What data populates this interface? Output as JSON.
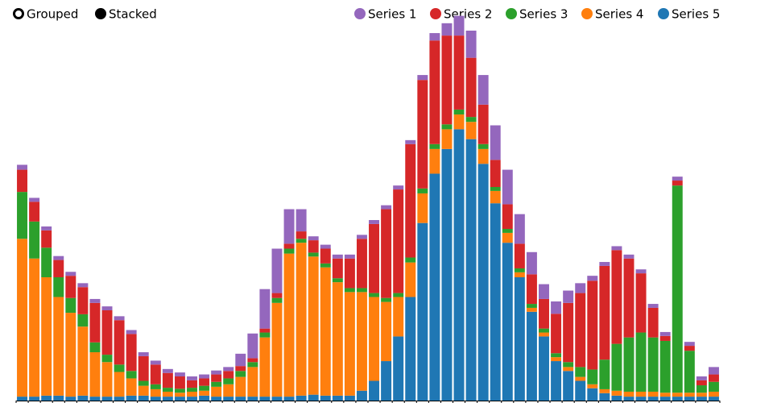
{
  "controls": {
    "modes": [
      {
        "label": "Grouped",
        "selected": false
      },
      {
        "label": "Stacked",
        "selected": true
      }
    ]
  },
  "chart_data": {
    "type": "bar",
    "stacked": true,
    "title": "",
    "xlabel": "",
    "ylabel": "",
    "ylim": [
      0,
      7.5
    ],
    "n_categories": 58,
    "legend_position": "top-right",
    "series": [
      {
        "name": "Series 1",
        "color": "#9467bd",
        "values": [
          0.1,
          0.08,
          0.08,
          0.08,
          0.08,
          0.08,
          0.08,
          0.08,
          0.08,
          0.08,
          0.08,
          0.08,
          0.08,
          0.08,
          0.08,
          0.08,
          0.08,
          0.08,
          0.25,
          0.5,
          0.8,
          0.9,
          0.7,
          0.45,
          0.08,
          0.08,
          0.08,
          0.08,
          0.08,
          0.08,
          0.08,
          0.08,
          0.08,
          0.1,
          0.15,
          0.25,
          0.4,
          0.55,
          0.6,
          0.7,
          0.7,
          0.6,
          0.45,
          0.3,
          0.25,
          0.25,
          0.2,
          0.1,
          0.08,
          0.08,
          0.08,
          0.08,
          0.08,
          0.08,
          0.08,
          0.08,
          0.08,
          0.15
        ]
      },
      {
        "name": "Series 2",
        "color": "#d62728",
        "values": [
          0.45,
          0.4,
          0.35,
          0.35,
          0.45,
          0.55,
          0.8,
          0.9,
          0.9,
          0.75,
          0.5,
          0.4,
          0.3,
          0.25,
          0.15,
          0.15,
          0.15,
          0.15,
          0.1,
          0.08,
          0.08,
          0.1,
          0.1,
          0.15,
          0.25,
          0.3,
          0.4,
          0.6,
          1.0,
          1.4,
          1.8,
          2.1,
          2.3,
          2.2,
          2.1,
          1.8,
          1.5,
          1.2,
          0.8,
          0.55,
          0.5,
          0.5,
          0.6,
          0.6,
          0.8,
          1.2,
          1.5,
          1.8,
          1.9,
          1.9,
          1.6,
          1.2,
          0.6,
          0.1,
          0.1,
          0.1,
          0.1,
          0.15
        ]
      },
      {
        "name": "Series 3",
        "color": "#2ca02c",
        "values": [
          0.95,
          0.75,
          0.6,
          0.4,
          0.3,
          0.25,
          0.2,
          0.15,
          0.15,
          0.15,
          0.1,
          0.1,
          0.08,
          0.08,
          0.08,
          0.1,
          0.1,
          0.12,
          0.12,
          0.1,
          0.1,
          0.1,
          0.1,
          0.08,
          0.08,
          0.08,
          0.08,
          0.08,
          0.08,
          0.08,
          0.08,
          0.08,
          0.1,
          0.1,
          0.1,
          0.1,
          0.1,
          0.1,
          0.1,
          0.08,
          0.08,
          0.08,
          0.08,
          0.08,
          0.08,
          0.1,
          0.2,
          0.3,
          0.6,
          0.95,
          1.1,
          1.2,
          1.1,
          1.05,
          4.2,
          0.85,
          0.15,
          0.2
        ]
      },
      {
        "name": "Series 4",
        "color": "#ff7f0e",
        "values": [
          3.2,
          2.8,
          2.4,
          2.0,
          1.7,
          1.4,
          0.9,
          0.7,
          0.5,
          0.35,
          0.2,
          0.15,
          0.1,
          0.08,
          0.1,
          0.1,
          0.2,
          0.25,
          0.4,
          0.6,
          1.2,
          1.9,
          2.9,
          3.1,
          2.8,
          2.6,
          2.3,
          2.1,
          2.0,
          1.7,
          1.2,
          0.8,
          0.7,
          0.6,
          0.5,
          0.4,
          0.3,
          0.35,
          0.3,
          0.25,
          0.2,
          0.1,
          0.08,
          0.08,
          0.08,
          0.08,
          0.08,
          0.08,
          0.08,
          0.1,
          0.1,
          0.1,
          0.1,
          0.08,
          0.08,
          0.08,
          0.08,
          0.1
        ]
      },
      {
        "name": "Series 5",
        "color": "#1f77b4",
        "values": [
          0.08,
          0.08,
          0.1,
          0.1,
          0.08,
          0.1,
          0.08,
          0.08,
          0.08,
          0.1,
          0.1,
          0.08,
          0.08,
          0.08,
          0.08,
          0.1,
          0.08,
          0.08,
          0.08,
          0.08,
          0.08,
          0.08,
          0.08,
          0.1,
          0.12,
          0.1,
          0.1,
          0.1,
          0.2,
          0.4,
          0.8,
          1.3,
          2.1,
          3.6,
          4.6,
          5.1,
          5.5,
          5.3,
          4.8,
          4.0,
          3.2,
          2.5,
          1.8,
          1.3,
          0.8,
          0.6,
          0.4,
          0.25,
          0.15,
          0.1,
          0.08,
          0.08,
          0.08,
          0.08,
          0.08,
          0.08,
          0.08,
          0.08
        ]
      }
    ]
  }
}
